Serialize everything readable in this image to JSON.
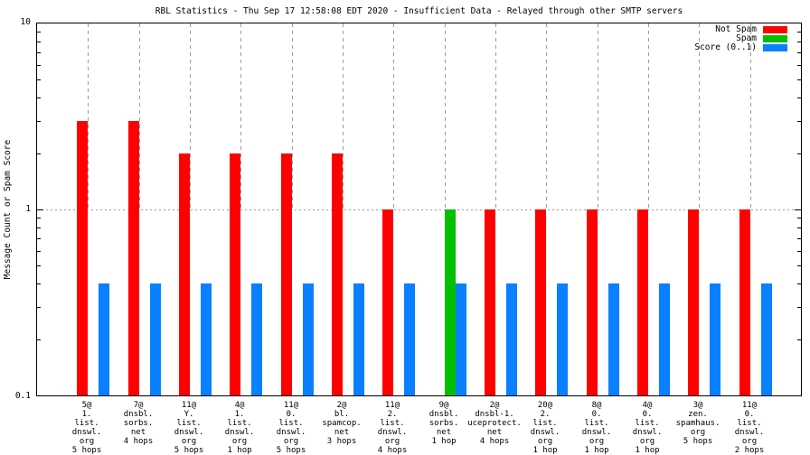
{
  "title": "RBL Statistics - Thu Sep 17 12:58:08 EDT 2020 - Insufficient Data - Relayed through other SMTP servers",
  "y_axis": {
    "label": "Message Count or Spam Score"
  },
  "chart_data": {
    "type": "bar",
    "title": "RBL Statistics - Thu Sep 17 12:58:08 EDT 2020 - Insufficient Data - Relayed through other SMTP servers",
    "xlabel": "",
    "ylabel": "Message Count or Spam Score",
    "yscale": "log",
    "ylim": [
      0.1,
      10
    ],
    "yticks": [
      {
        "value": 10,
        "label": "10"
      },
      {
        "value": 1,
        "label": "1"
      },
      {
        "value": 0.1,
        "label": "0.1"
      }
    ],
    "grid": true,
    "legend_position": "top-right-inside",
    "categories": [
      [
        "5@",
        "1.",
        "list.",
        "dnswl.",
        "org",
        "5 hops"
      ],
      [
        "7@",
        "dnsbl.",
        "sorbs.",
        "net",
        "4 hops"
      ],
      [
        "11@",
        "Y.",
        "list.",
        "dnswl.",
        "org",
        "5 hops"
      ],
      [
        "4@",
        "1.",
        "list.",
        "dnswl.",
        "org",
        "1 hop"
      ],
      [
        "11@",
        "0.",
        "list.",
        "dnswl.",
        "org",
        "5 hops"
      ],
      [
        "2@",
        "bl.",
        "spamcop.",
        "net",
        "3 hops"
      ],
      [
        "11@",
        "2.",
        "list.",
        "dnswl.",
        "org",
        "4 hops"
      ],
      [
        "9@",
        "dnsbl.",
        "sorbs.",
        "net",
        "1 hop"
      ],
      [
        "2@",
        "dnsbl-1.",
        "uceprotect.",
        "net",
        "4 hops"
      ],
      [
        "20@",
        "2.",
        "list.",
        "dnswl.",
        "org",
        "1 hop"
      ],
      [
        "8@",
        "0.",
        "list.",
        "dnswl.",
        "org",
        "1 hop"
      ],
      [
        "4@",
        "0.",
        "list.",
        "dnswl.",
        "org",
        "1 hop"
      ],
      [
        "3@",
        "zen.",
        "spamhaus.",
        "org",
        "5 hops"
      ],
      [
        "11@",
        "0.",
        "list.",
        "dnswl.",
        "org",
        "2 hops"
      ]
    ],
    "series": [
      {
        "name": "Not Spam",
        "color": "#ff0000",
        "values": [
          3,
          3,
          2,
          2,
          2,
          2,
          1,
          0,
          1,
          1,
          1,
          1,
          1,
          1
        ]
      },
      {
        "name": "Spam",
        "color": "#00c000",
        "values": [
          0,
          0,
          0,
          0,
          0,
          0,
          0,
          1,
          0,
          0,
          0,
          0,
          0,
          0
        ]
      },
      {
        "name": "Score (0..1)",
        "color": "#0880ff",
        "values": [
          0.4,
          0.4,
          0.4,
          0.4,
          0.4,
          0.4,
          0.4,
          0.4,
          0.4,
          0.4,
          0.4,
          0.4,
          0.4,
          0.4
        ]
      }
    ],
    "colors": {
      "grid": "#9c9c9c",
      "border": "#000000",
      "background": "#ffffff"
    }
  }
}
